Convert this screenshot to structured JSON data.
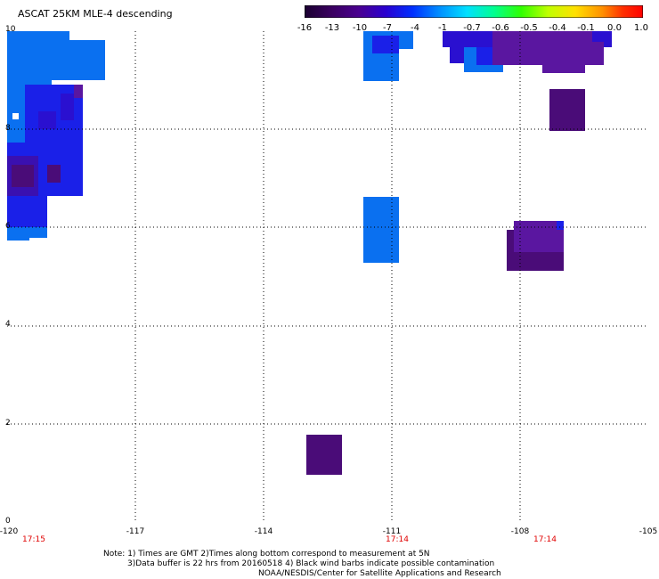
{
  "title": "ASCAT 25KM MLE-4 descending",
  "colorbar": {
    "labels": [
      "-16",
      "-13",
      "-10",
      "-7",
      "-4",
      "-1",
      "-0.7",
      "-0.6",
      "-0.5",
      "-0.4",
      "-0.1",
      "0.0",
      "1.0"
    ],
    "colors": [
      "#1a0030",
      "#3a0060",
      "#4a0090",
      "#2a00d0",
      "#0030ff",
      "#0090ff",
      "#00e0ff",
      "#00ff90",
      "#30ff00",
      "#c0ff00",
      "#ffe000",
      "#ff9000",
      "#ff3000",
      "#ff0000"
    ]
  },
  "map": {
    "lon_labels": [
      "-120",
      "-117",
      "-114",
      "-111",
      "-108",
      "-105"
    ],
    "lat_labels": [
      "0",
      "2",
      "4",
      "6",
      "8",
      "10"
    ],
    "times": [
      "17:15",
      "17:14",
      "17:14"
    ],
    "grid": "dotted",
    "colors": {
      "light_blue": "#0a70f0",
      "blue": "#1a20e8",
      "dark_violet": "#4a0c78",
      "violet": "#5a16a0"
    }
  },
  "note": {
    "line1": "Note: 1) Times are GMT 2)Times along bottom correspond to measurement at 5N",
    "line2": "3)Data buffer is 22 hrs from 20160518 4) Black wind barbs indicate possible contamination",
    "line3": "NOAA/NESDIS/Center for Satellite Applications and Research"
  }
}
